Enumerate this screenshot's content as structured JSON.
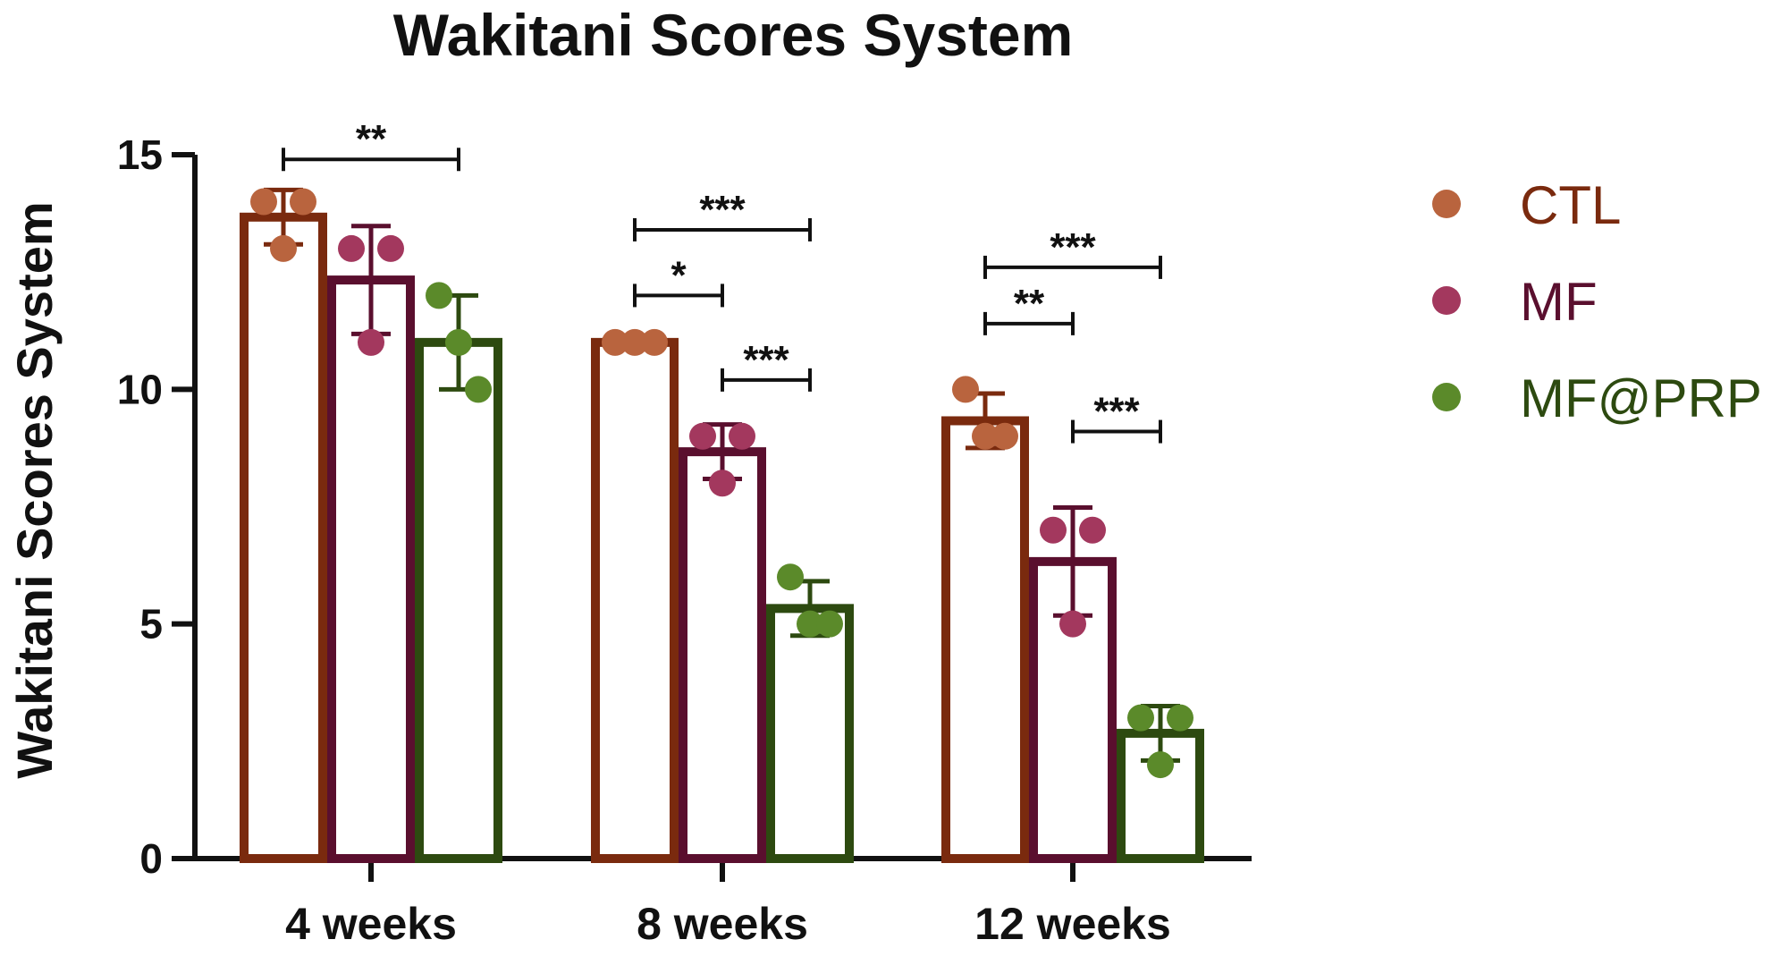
{
  "chart_data": {
    "type": "bar",
    "title": "Wakitani Scores System",
    "ylabel": "Wakitani Scores System",
    "xlabel": "",
    "ylim": [
      0,
      15
    ],
    "yticks": [
      0,
      5,
      10,
      15
    ],
    "categories": [
      "4 weeks",
      "8 weeks",
      "12 weeks"
    ],
    "legend_position": "right",
    "series": [
      {
        "name": "CTL",
        "color": "#7a2a0e",
        "point_color": "#b9643e",
        "values": [
          13.67,
          11.0,
          9.33
        ],
        "sd": [
          0.58,
          0.0,
          0.58
        ],
        "points": [
          [
            14,
            13,
            14
          ],
          [
            11,
            11,
            11
          ],
          [
            10,
            9,
            9
          ]
        ]
      },
      {
        "name": "MF",
        "color": "#5a0f2e",
        "point_color": "#a3385e",
        "values": [
          12.33,
          8.67,
          6.33
        ],
        "sd": [
          1.15,
          0.58,
          1.15
        ],
        "points": [
          [
            13,
            11,
            13
          ],
          [
            9,
            8,
            9
          ],
          [
            7,
            5,
            7
          ]
        ]
      },
      {
        "name": "MF@PRP",
        "color": "#2d4a10",
        "point_color": "#5b8a2a",
        "values": [
          11.0,
          5.33,
          2.67
        ],
        "sd": [
          1.0,
          0.58,
          0.58
        ],
        "points": [
          [
            12,
            11,
            10
          ],
          [
            6,
            5,
            5
          ],
          [
            3,
            2,
            3
          ]
        ]
      }
    ],
    "significance": [
      {
        "category": 0,
        "from": 0,
        "to": 2,
        "label": "**",
        "y": 14.9
      },
      {
        "category": 1,
        "from": 0,
        "to": 2,
        "label": "***",
        "y": 13.4
      },
      {
        "category": 1,
        "from": 0,
        "to": 1,
        "label": "*",
        "y": 12.0
      },
      {
        "category": 1,
        "from": 1,
        "to": 2,
        "label": "***",
        "y": 10.2
      },
      {
        "category": 2,
        "from": 0,
        "to": 2,
        "label": "***",
        "y": 12.6
      },
      {
        "category": 2,
        "from": 0,
        "to": 1,
        "label": "**",
        "y": 11.4
      },
      {
        "category": 2,
        "from": 1,
        "to": 2,
        "label": "***",
        "y": 9.1
      }
    ]
  }
}
